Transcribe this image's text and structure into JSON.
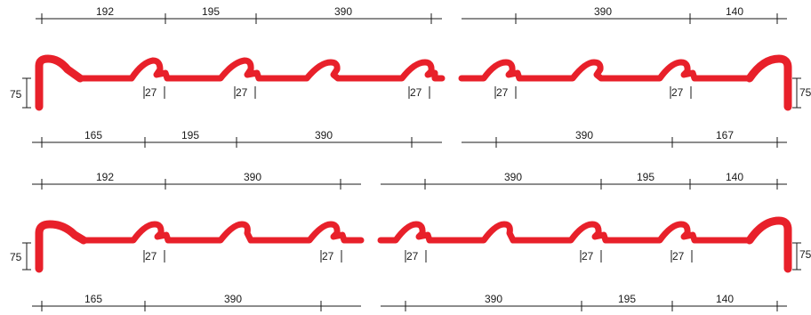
{
  "colors": {
    "profile": "#e8202a",
    "dimension": "#1a1a1a"
  },
  "row1": {
    "top_left": [
      "192",
      "195",
      "390"
    ],
    "top_right": [
      "390",
      "140"
    ],
    "height_left": "75",
    "height_right": "75",
    "gaps_left": [
      "27",
      "27",
      "27"
    ],
    "gaps_right": [
      "27",
      "27"
    ],
    "bottom_left": [
      "165",
      "195",
      "390"
    ],
    "bottom_right": [
      "390",
      "167"
    ]
  },
  "row2": {
    "top_left": [
      "192",
      "390"
    ],
    "top_right": [
      "390",
      "195",
      "140"
    ],
    "height_left": "75",
    "height_right": "75",
    "gaps_left": [
      "27",
      "27"
    ],
    "gaps_right": [
      "27",
      "27",
      "27"
    ],
    "bottom_left": [
      "165",
      "390"
    ],
    "bottom_right": [
      "390",
      "195",
      "140"
    ]
  }
}
